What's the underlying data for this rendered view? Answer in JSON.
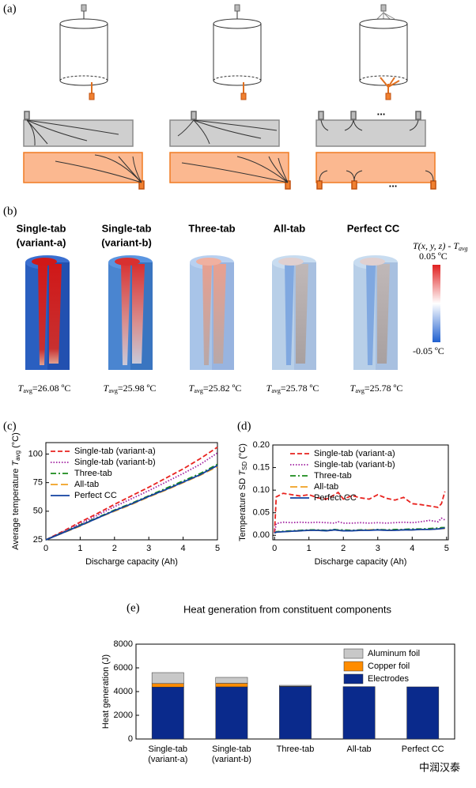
{
  "panel_labels": [
    "(a)",
    "(b)",
    "(c)",
    "(d)",
    "(e)"
  ],
  "panel_a": {
    "ellipsis": [
      "...",
      "..."
    ]
  },
  "panel_b": {
    "cells": [
      {
        "title": [
          "Single-tab",
          "(variant-a)"
        ],
        "symbol": "T",
        "subscript": "avg",
        "text": "=26.08 ºC"
      },
      {
        "title": [
          "Single-tab",
          "(variant-b)"
        ],
        "symbol": "T",
        "subscript": "avg",
        "text": "=25.98 ºC"
      },
      {
        "title": [
          "Three-tab"
        ],
        "symbol": "T",
        "subscript": "avg",
        "text": "=25.82 ºC"
      },
      {
        "title": [
          "All-tab"
        ],
        "symbol": "T",
        "subscript": "avg",
        "text": "=25.78 ºC"
      },
      {
        "title": [
          "Perfect CC"
        ],
        "symbol": "T",
        "subscript": "avg",
        "text": "=25.78 ºC"
      }
    ],
    "colorbar": {
      "title": "T(x, y, z) - T",
      "subscript": "avg",
      "max_label": "0.05 ºC",
      "min_label": "-0.05 ºC"
    }
  },
  "watermark": "中润汉泰",
  "chart_data": [
    {
      "type": "line",
      "xlabel": "Discharge capacity (Ah)",
      "ylabel": {
        "text": "Average temperature ",
        "symbol": "T",
        "subscript": "avg",
        "unit": " (°C)"
      },
      "xlim": [
        0,
        5
      ],
      "xticks": [
        0,
        1,
        2,
        3,
        4,
        5
      ],
      "ylim": [
        25,
        110
      ],
      "yticks": [
        25,
        50,
        75,
        100
      ],
      "legend": "upper left",
      "x": [
        0,
        0.5,
        1,
        1.5,
        2,
        2.5,
        3,
        3.5,
        4,
        4.5,
        5
      ],
      "series": [
        {
          "name": "Single-tab (variant-a)",
          "color": "#e8231f",
          "dash": "dashed",
          "values": [
            25,
            32.5,
            40.5,
            48,
            56,
            63.5,
            71,
            79,
            87,
            96,
            106
          ]
        },
        {
          "name": "Single-tab (variant-b)",
          "color": "#a020a0",
          "dash": "dotted",
          "values": [
            25,
            32,
            39,
            46.5,
            54,
            61,
            68,
            75.5,
            83,
            91,
            101
          ]
        },
        {
          "name": "Three-tab",
          "color": "#1a8a1a",
          "dash": "dashdot",
          "values": [
            25,
            31.5,
            38,
            44.5,
            51,
            57,
            63.5,
            70,
            76.5,
            83,
            91
          ]
        },
        {
          "name": "All-tab",
          "color": "#f0a020",
          "dash": "longdash",
          "values": [
            25,
            31,
            37,
            44,
            50,
            56,
            62.5,
            68.5,
            75,
            81.5,
            89
          ]
        },
        {
          "name": "Perfect CC",
          "color": "#1040a0",
          "dash": "solid",
          "values": [
            25,
            31.2,
            37.5,
            44,
            50.5,
            56.5,
            63,
            69,
            75.5,
            82,
            90
          ]
        }
      ]
    },
    {
      "type": "line",
      "xlabel": "Discharge capacity (Ah)",
      "ylabel": {
        "text": "Temperature SD ",
        "symbol": "T",
        "subscript": "SD",
        "unit": " (°C)"
      },
      "xlim": [
        -0.05,
        5.05
      ],
      "xticks": [
        0,
        1,
        2,
        3,
        4,
        5
      ],
      "ylim": [
        -0.01,
        0.2
      ],
      "yticks": [
        {
          "value": 0,
          "label": "0.00"
        },
        {
          "value": 0.05,
          "label": "0.05"
        },
        {
          "value": 0.1,
          "label": "0.10"
        },
        {
          "value": 0.15,
          "label": "0.15"
        },
        {
          "value": 0.2,
          "label": "0.20"
        }
      ],
      "legend": "upper center",
      "x": [
        0,
        0.05,
        0.25,
        0.5,
        0.75,
        1,
        1.25,
        1.5,
        1.75,
        1.85,
        2,
        2.25,
        2.5,
        2.75,
        3,
        3.25,
        3.5,
        3.75,
        4,
        4.25,
        4.5,
        4.75,
        4.85,
        4.95
      ],
      "series": [
        {
          "name": "Single-tab (variant-a)",
          "color": "#e8231f",
          "dash": "dashed",
          "values": [
            0.005,
            0.085,
            0.093,
            0.09,
            0.087,
            0.09,
            0.083,
            0.08,
            0.09,
            0.095,
            0.08,
            0.088,
            0.083,
            0.08,
            0.09,
            0.082,
            0.078,
            0.084,
            0.07,
            0.068,
            0.065,
            0.062,
            0.07,
            0.097
          ]
        },
        {
          "name": "Single-tab (variant-b)",
          "color": "#a020a0",
          "dash": "dotted",
          "values": [
            0.005,
            0.026,
            0.029,
            0.028,
            0.029,
            0.028,
            0.029,
            0.028,
            0.027,
            0.03,
            0.027,
            0.027,
            0.028,
            0.027,
            0.028,
            0.027,
            0.028,
            0.029,
            0.028,
            0.03,
            0.033,
            0.03,
            0.038,
            0.034
          ]
        },
        {
          "name": "Three-tab",
          "color": "#1a8a1a",
          "dash": "dashdot",
          "values": [
            0.005,
            0.008,
            0.009,
            0.01,
            0.011,
            0.012,
            0.012,
            0.011,
            0.013,
            0.012,
            0.012,
            0.011,
            0.012,
            0.012,
            0.013,
            0.012,
            0.013,
            0.013,
            0.014,
            0.014,
            0.015,
            0.016,
            0.017,
            0.017
          ]
        },
        {
          "name": "All-tab",
          "color": "#f0a020",
          "dash": "longdash",
          "values": [
            0.005,
            0.007,
            0.008,
            0.009,
            0.01,
            0.011,
            0.011,
            0.01,
            0.012,
            0.011,
            0.01,
            0.01,
            0.011,
            0.012,
            0.012,
            0.011,
            0.011,
            0.012,
            0.012,
            0.013,
            0.013,
            0.014,
            0.015,
            0.015
          ]
        },
        {
          "name": "Perfect CC",
          "color": "#1040a0",
          "dash": "solid",
          "values": [
            0.005,
            0.007,
            0.008,
            0.009,
            0.01,
            0.011,
            0.011,
            0.01,
            0.012,
            0.011,
            0.01,
            0.01,
            0.011,
            0.011,
            0.012,
            0.011,
            0.011,
            0.012,
            0.012,
            0.013,
            0.013,
            0.014,
            0.015,
            0.016
          ]
        }
      ]
    },
    {
      "type": "bar",
      "title": "Heat generation from constituent components",
      "ylabel": "Heat generation (J)",
      "stacked": true,
      "legend": "upper right",
      "ylim": [
        0,
        8000
      ],
      "yticks": [
        0,
        2000,
        4000,
        6000,
        8000
      ],
      "categories": [
        [
          "Single-tab",
          "(variant-a)"
        ],
        [
          "Single-tab",
          "(variant-b)"
        ],
        [
          "Three-tab"
        ],
        [
          "All-tab"
        ],
        [
          "Perfect CC"
        ]
      ],
      "series": [
        {
          "name": "Electrodes",
          "color": "#0a2a8c",
          "values": [
            4380,
            4400,
            4430,
            4420,
            4400
          ]
        },
        {
          "name": "Copper foil",
          "color": "#ff8c00",
          "values": [
            300,
            300,
            20,
            0,
            0
          ]
        },
        {
          "name": "Aluminum foil",
          "color": "#c8c8c8",
          "values": [
            920,
            500,
            80,
            0,
            0
          ]
        }
      ]
    }
  ]
}
